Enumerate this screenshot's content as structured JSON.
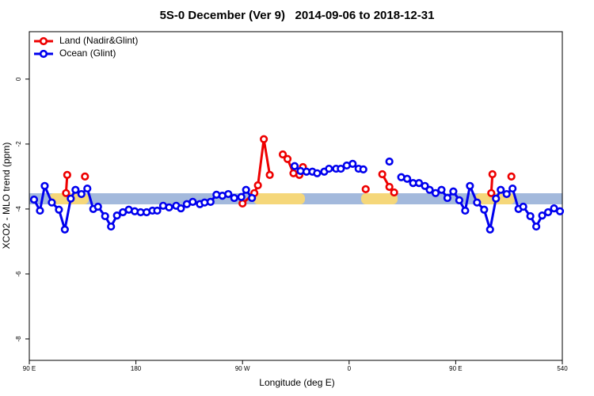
{
  "chart_data": {
    "type": "line",
    "title": "5S-0 December (Ver 9)   2014-09-06 to 2018-12-31",
    "xlabel": "Longitude (deg E)",
    "ylabel": "XCO2 - MLO trend (ppm)",
    "xlim": [
      90,
      540
    ],
    "ylim": [
      -8.66,
      1.46
    ],
    "xticks": [
      {
        "value": 90,
        "label": "90 E"
      },
      180,
      {
        "value": 270,
        "label": "90 W"
      },
      {
        "value": 360,
        "label": "0"
      },
      {
        "value": 450,
        "label": "90 E"
      },
      540
    ],
    "yticks": [
      0,
      -2,
      -4,
      -6,
      -8
    ],
    "legend": "top-left",
    "series": [
      {
        "name": "Land (Nadir&Glint)",
        "color": "#ee0000",
        "x": [
          121,
          122,
          null,
          137,
          null,
          270,
          280,
          283,
          288,
          293,
          null,
          304,
          308,
          313,
          318,
          321,
          null,
          374,
          null,
          388,
          394,
          398,
          null,
          480,
          481,
          null,
          497
        ],
        "values": [
          -3.51,
          -2.95,
          null,
          -3.0,
          null,
          -3.83,
          -3.51,
          -3.27,
          -1.85,
          -2.95,
          null,
          -2.32,
          -2.46,
          -2.9,
          -2.95,
          -2.71,
          null,
          -3.39,
          null,
          -2.93,
          -3.32,
          -3.49,
          null,
          -3.51,
          -2.93,
          null,
          -3.0
        ]
      },
      {
        "name": "Ocean (Glint)",
        "color": "#0000ee",
        "x": [
          94,
          99,
          103,
          109,
          115,
          120,
          125,
          129,
          134,
          139,
          144,
          148,
          154,
          159,
          164,
          169,
          174,
          179,
          184,
          189,
          194,
          198,
          203,
          208,
          214,
          218,
          223,
          228,
          234,
          238,
          243,
          248,
          253,
          258,
          263,
          269,
          273,
          278,
          null,
          314,
          319,
          324,
          329,
          333,
          339,
          343,
          349,
          353,
          358,
          363,
          368,
          372,
          null,
          394,
          null,
          404,
          409,
          414,
          419,
          424,
          428,
          433,
          438,
          443,
          448,
          453,
          458,
          462,
          468,
          474,
          479,
          484,
          488,
          493,
          498,
          503,
          507,
          513,
          518,
          523,
          528,
          533,
          538
        ],
        "values": [
          -3.71,
          -4.05,
          -3.29,
          -3.8,
          -4.02,
          -4.63,
          -3.68,
          -3.41,
          -3.54,
          -3.37,
          -4.0,
          -3.93,
          -4.22,
          -4.54,
          -4.2,
          -4.1,
          -4.02,
          -4.07,
          -4.1,
          -4.1,
          -4.05,
          -4.05,
          -3.9,
          -3.95,
          -3.9,
          -3.98,
          -3.85,
          -3.78,
          -3.85,
          -3.8,
          -3.78,
          -3.56,
          -3.59,
          -3.54,
          -3.66,
          -3.63,
          -3.41,
          -3.66,
          null,
          -2.68,
          -2.83,
          -2.85,
          -2.85,
          -2.9,
          -2.85,
          -2.76,
          -2.76,
          -2.76,
          -2.66,
          -2.61,
          -2.76,
          -2.78,
          null,
          -2.54,
          null,
          -3.02,
          -3.07,
          -3.2,
          -3.2,
          -3.29,
          -3.41,
          -3.51,
          -3.41,
          -3.66,
          -3.46,
          -3.73,
          -4.05,
          -3.29,
          -3.8,
          -4.02,
          -4.63,
          -3.68,
          -3.41,
          -3.54,
          -3.37,
          -4.0,
          -3.93,
          -4.22,
          -4.54,
          -4.2,
          -4.1,
          -3.98,
          -4.07
        ]
      }
    ]
  }
}
